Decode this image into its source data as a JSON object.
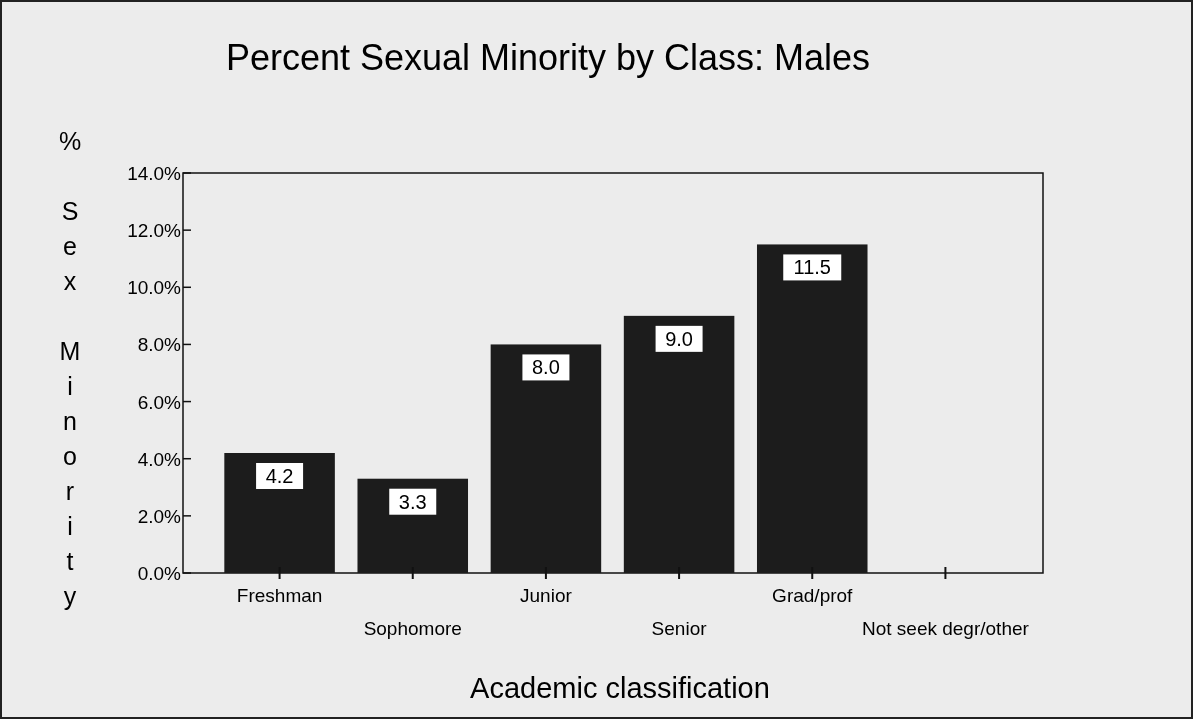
{
  "chart_data": {
    "type": "bar",
    "title": "Percent Sexual Minority by Class: Males",
    "xlabel": "Academic classification",
    "ylabel": "% Sex Minority",
    "categories": [
      "Freshman",
      "Sophomore",
      "Junior",
      "Senior",
      "Grad/prof",
      "Not seek degr/other"
    ],
    "values": [
      4.2,
      3.3,
      8.0,
      9.0,
      11.5,
      null
    ],
    "color": "#1c1c1c",
    "value_labels": [
      "4.2",
      "3.3",
      "8.0",
      "9.0",
      "11.5",
      null
    ],
    "ylim": [
      0,
      14
    ],
    "yticks": [
      {
        "value": 0,
        "label": "0.0%"
      },
      {
        "value": 2,
        "label": "2.0%"
      },
      {
        "value": 4,
        "label": "4.0%"
      },
      {
        "value": 6,
        "label": "6.0%"
      },
      {
        "value": 8,
        "label": "8.0%"
      },
      {
        "value": 10,
        "label": "10.0%"
      },
      {
        "value": 12,
        "label": "12.0%"
      },
      {
        "value": 14,
        "label": "14.0%"
      }
    ],
    "grid": false
  }
}
